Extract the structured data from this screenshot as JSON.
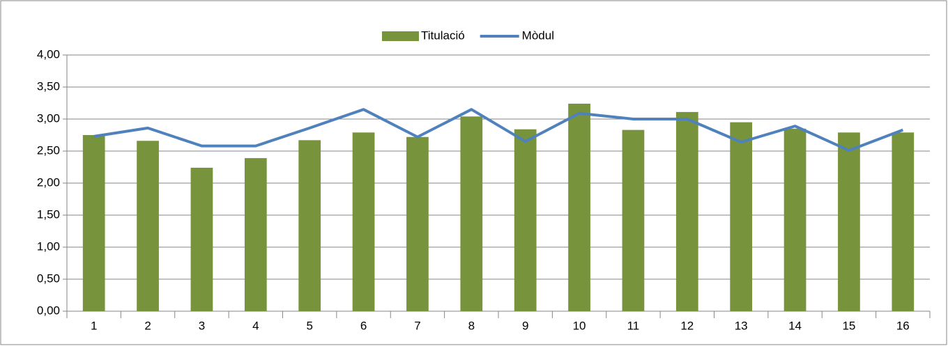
{
  "chart_data": {
    "type": "bar_line",
    "categories": [
      "1",
      "2",
      "3",
      "4",
      "5",
      "6",
      "7",
      "8",
      "9",
      "10",
      "11",
      "12",
      "13",
      "14",
      "15",
      "16"
    ],
    "series": [
      {
        "name": "Titulació",
        "type": "bar",
        "color": "#77933c",
        "values": [
          2.75,
          2.66,
          2.24,
          2.39,
          2.67,
          2.79,
          2.72,
          3.04,
          2.84,
          3.24,
          2.83,
          3.11,
          2.95,
          2.85,
          2.79,
          2.79
        ]
      },
      {
        "name": "Mòdul",
        "type": "line",
        "color": "#4f81bd",
        "values": [
          2.73,
          2.86,
          2.58,
          2.58,
          2.86,
          3.15,
          2.72,
          3.15,
          2.65,
          3.09,
          3.0,
          3.0,
          2.64,
          2.89,
          2.51,
          2.83
        ]
      }
    ],
    "ylim": [
      0,
      4
    ],
    "yticks": [
      {
        "value": 0,
        "label": "0,00"
      },
      {
        "value": 0.5,
        "label": "0,50"
      },
      {
        "value": 1,
        "label": "1,00"
      },
      {
        "value": 1.5,
        "label": "1,50"
      },
      {
        "value": 2,
        "label": "2,00"
      },
      {
        "value": 2.5,
        "label": "2,50"
      },
      {
        "value": 3,
        "label": "3,00"
      },
      {
        "value": 3.5,
        "label": "3,50"
      },
      {
        "value": 4,
        "label": "4,00"
      }
    ],
    "grid": true,
    "legend": "top"
  }
}
